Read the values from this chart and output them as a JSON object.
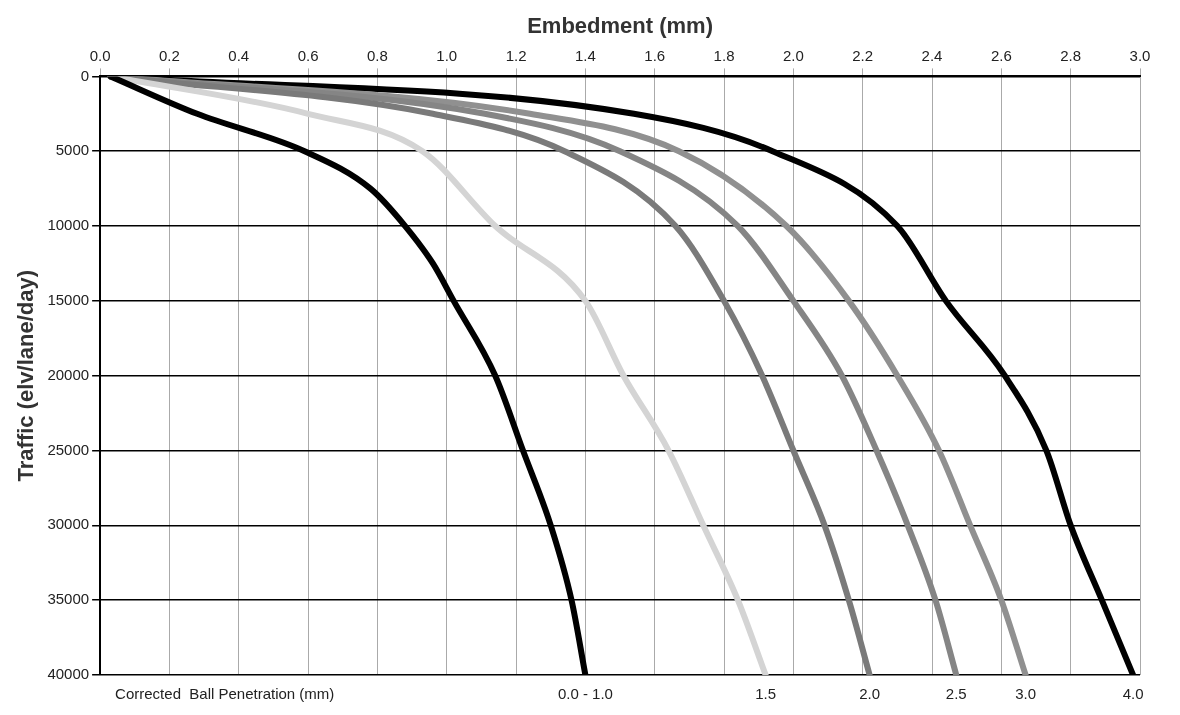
{
  "chart_data": {
    "type": "line",
    "xlabel": "Embedment (mm)",
    "ylabel": "Traffic (elv/lane/day)",
    "xlim": [
      0,
      3
    ],
    "xticks": [
      {
        "value": 0,
        "label": "0.0"
      },
      {
        "value": 0.2,
        "label": "0.2"
      },
      {
        "value": 0.4,
        "label": "0.4"
      },
      {
        "value": 0.6,
        "label": "0.6"
      },
      {
        "value": 0.8,
        "label": "0.8"
      },
      {
        "value": 1,
        "label": "1.0"
      },
      {
        "value": 1.2,
        "label": "1.2"
      },
      {
        "value": 1.4,
        "label": "1.4"
      },
      {
        "value": 1.6,
        "label": "1.6"
      },
      {
        "value": 1.8,
        "label": "1.8"
      },
      {
        "value": 2,
        "label": "2.0"
      },
      {
        "value": 2.2,
        "label": "2.2"
      },
      {
        "value": 2.4,
        "label": "2.4"
      },
      {
        "value": 2.6,
        "label": "2.6"
      },
      {
        "value": 2.8,
        "label": "2.8"
      },
      {
        "value": 3,
        "label": "3.0"
      }
    ],
    "ylim": [
      40000,
      0
    ],
    "yticks": [
      0,
      5000,
      10000,
      15000,
      20000,
      25000,
      30000,
      35000,
      40000
    ],
    "grid": true,
    "legend": false,
    "annotations": [
      "Corrected  Ball Penetration (mm)"
    ],
    "series": [
      {
        "name": "0.0 - 1.0",
        "color": "#000000",
        "x": [
          0.03,
          0.28,
          0.59,
          0.78,
          0.88,
          0.96,
          1.02,
          1.14,
          1.22,
          1.3,
          1.36,
          1.4
        ],
        "values": [
          0,
          2500,
          5000,
          7500,
          10000,
          12500,
          15000,
          20000,
          25000,
          30000,
          35000,
          40000
        ]
      },
      {
        "name": "1.5",
        "color": "#d4d4d4",
        "x": [
          0.03,
          0.6,
          0.93,
          1.14,
          1.4,
          1.51,
          1.64,
          1.74,
          1.84,
          1.92
        ],
        "values": [
          0,
          2500,
          5000,
          10000,
          15000,
          20000,
          25000,
          30000,
          35000,
          40000
        ]
      },
      {
        "name": "2.0",
        "color": "#7a7a7a",
        "x": [
          0.03,
          0.96,
          1.34,
          1.66,
          1.8,
          1.91,
          2.0,
          2.09,
          2.16,
          2.22
        ],
        "values": [
          0,
          2500,
          5000,
          10000,
          15000,
          20000,
          25000,
          30000,
          35000,
          40000
        ]
      },
      {
        "name": "2.5",
        "color": "#858585",
        "x": [
          0.03,
          1.11,
          1.5,
          1.84,
          2.0,
          2.14,
          2.24,
          2.33,
          2.41,
          2.47
        ],
        "values": [
          0,
          2500,
          5000,
          10000,
          15000,
          20000,
          25000,
          30000,
          35000,
          40000
        ]
      },
      {
        "name": "3.0",
        "color": "#909090",
        "x": [
          0.03,
          1.24,
          1.67,
          1.98,
          2.16,
          2.3,
          2.42,
          2.51,
          2.6,
          2.67
        ],
        "values": [
          0,
          2500,
          5000,
          10000,
          15000,
          20000,
          25000,
          30000,
          35000,
          40000
        ]
      },
      {
        "name": "4.0",
        "color": "#000000",
        "x": [
          0.03,
          1.54,
          1.94,
          2.3,
          2.44,
          2.61,
          2.73,
          2.8,
          2.89,
          2.98
        ],
        "values": [
          0,
          2500,
          5000,
          10000,
          15000,
          20000,
          25000,
          30000,
          35000,
          40000
        ]
      }
    ]
  }
}
